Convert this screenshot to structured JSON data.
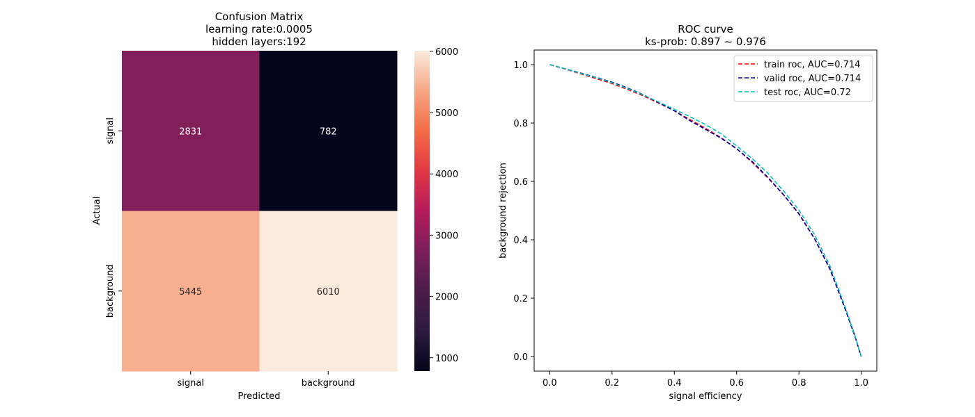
{
  "chart_data": [
    {
      "type": "heatmap",
      "title_lines": [
        "Confusion Matrix",
        "learning rate:0.0005",
        "hidden layers:192"
      ],
      "xlabel": "Predicted",
      "ylabel": "Actual",
      "x_categories": [
        "signal",
        "background"
      ],
      "y_categories": [
        "signal",
        "background"
      ],
      "values": [
        [
          2831,
          782
        ],
        [
          5445,
          6010
        ]
      ],
      "colorbar": {
        "min": 782,
        "max": 6010,
        "ticks": [
          1000,
          2000,
          3000,
          4000,
          5000,
          6000
        ],
        "colormap": "rocket"
      }
    },
    {
      "type": "line",
      "title_lines": [
        "ROC curve",
        "ks-prob: 0.897 ~ 0.976"
      ],
      "xlabel": "signal efficiency",
      "ylabel": "background rejection",
      "xlim": [
        -0.05,
        1.05
      ],
      "ylim": [
        -0.05,
        1.05
      ],
      "xticks": [
        "0.0",
        "0.2",
        "0.4",
        "0.6",
        "0.8",
        "1.0"
      ],
      "yticks": [
        "0.0",
        "0.2",
        "0.4",
        "0.6",
        "0.8",
        "1.0"
      ],
      "grid": false,
      "legend_position": "top-right",
      "series": [
        {
          "name": "train roc, AUC=0.714",
          "color": "#ff0000",
          "x": [
            0.0,
            0.05,
            0.1,
            0.15,
            0.2,
            0.25,
            0.3,
            0.35,
            0.4,
            0.45,
            0.5,
            0.55,
            0.6,
            0.65,
            0.7,
            0.75,
            0.8,
            0.85,
            0.9,
            0.95,
            0.98,
            1.0
          ],
          "y": [
            1.0,
            0.985,
            0.968,
            0.952,
            0.935,
            0.915,
            0.893,
            0.868,
            0.842,
            0.812,
            0.782,
            0.75,
            0.712,
            0.665,
            0.612,
            0.555,
            0.49,
            0.405,
            0.3,
            0.16,
            0.07,
            0.0
          ]
        },
        {
          "name": "valid roc, AUC=0.714",
          "color": "#0000aa",
          "x": [
            0.0,
            0.05,
            0.1,
            0.15,
            0.2,
            0.25,
            0.3,
            0.35,
            0.4,
            0.45,
            0.5,
            0.55,
            0.6,
            0.65,
            0.7,
            0.75,
            0.8,
            0.85,
            0.9,
            0.95,
            0.98,
            1.0
          ],
          "y": [
            1.0,
            0.986,
            0.971,
            0.956,
            0.94,
            0.92,
            0.897,
            0.87,
            0.842,
            0.808,
            0.778,
            0.748,
            0.712,
            0.668,
            0.614,
            0.555,
            0.488,
            0.404,
            0.298,
            0.158,
            0.068,
            0.0
          ]
        },
        {
          "name": "test roc, AUC=0.72",
          "color": "#00bfbf",
          "x": [
            0.0,
            0.05,
            0.1,
            0.15,
            0.2,
            0.25,
            0.3,
            0.35,
            0.4,
            0.45,
            0.5,
            0.55,
            0.6,
            0.65,
            0.7,
            0.75,
            0.8,
            0.85,
            0.9,
            0.95,
            0.98,
            1.0
          ],
          "y": [
            1.0,
            0.986,
            0.97,
            0.955,
            0.938,
            0.918,
            0.896,
            0.872,
            0.847,
            0.822,
            0.795,
            0.763,
            0.722,
            0.678,
            0.628,
            0.568,
            0.502,
            0.418,
            0.31,
            0.165,
            0.072,
            0.0
          ]
        }
      ]
    }
  ]
}
